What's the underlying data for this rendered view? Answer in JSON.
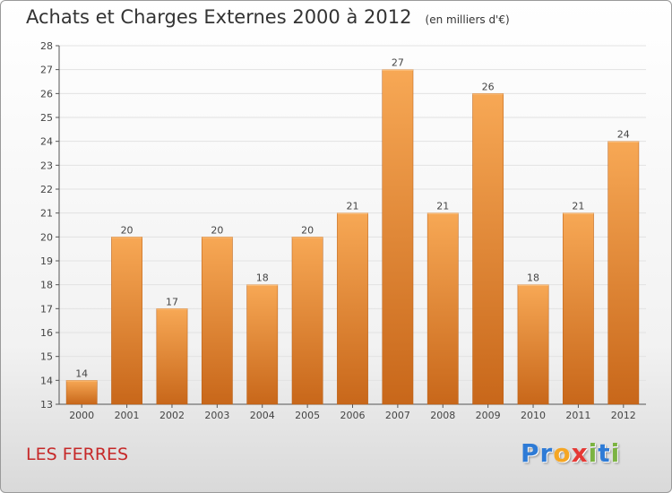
{
  "title": "Achats et Charges Externes 2000 à 2012",
  "subtitle": "(en milliers d'€)",
  "commune": "LES FERRES",
  "brand": {
    "letters": [
      "P",
      "r",
      "o",
      "x",
      "i",
      "t",
      "i"
    ],
    "colors": [
      "#2e7bd6",
      "#2e7bd6",
      "#f5a623",
      "#e53935",
      "#7cb342",
      "#2e7bd6",
      "#7cb342"
    ]
  },
  "colors": {
    "bar_top": "#f7a855",
    "bar_bottom": "#c8671a",
    "title": "#333333",
    "commune": "#c62828"
  },
  "chart_data": {
    "type": "bar",
    "title": "Achats et Charges Externes 2000 à 2012",
    "subtitle": "(en milliers d'€)",
    "categories": [
      "2000",
      "2001",
      "2002",
      "2003",
      "2004",
      "2005",
      "2006",
      "2007",
      "2008",
      "2009",
      "2010",
      "2011",
      "2012"
    ],
    "values": [
      14,
      20,
      17,
      20,
      18,
      20,
      21,
      27,
      21,
      26,
      18,
      21,
      24
    ],
    "xlabel": "",
    "ylabel": "",
    "ylim": [
      13,
      28
    ],
    "yticks": [
      13,
      14,
      15,
      16,
      17,
      18,
      19,
      20,
      21,
      22,
      23,
      24,
      25,
      26,
      27,
      28
    ],
    "grid": true,
    "legend": "none",
    "data_labels": true
  }
}
